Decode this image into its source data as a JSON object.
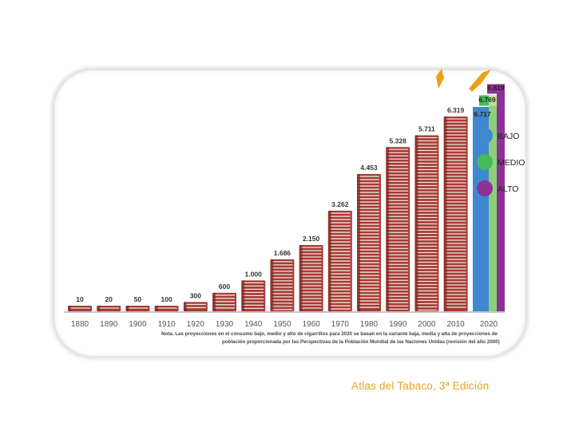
{
  "chart_data": {
    "type": "bar",
    "categories": [
      "1880",
      "1890",
      "1900",
      "1910",
      "1920",
      "1930",
      "1940",
      "1950",
      "1960",
      "1970",
      "1980",
      "1990",
      "2000",
      "2010"
    ],
    "values": [
      10,
      20,
      50,
      100,
      300,
      600,
      1000,
      1686,
      2150,
      3262,
      4453,
      5328,
      5711,
      6319
    ],
    "value_labels": [
      "10",
      "20",
      "50",
      "100",
      "300",
      "600",
      "1.000",
      "1.686",
      "2.150",
      "3.262",
      "4.453",
      "5.328",
      "5.711",
      "6.319"
    ],
    "projection": {
      "category": "2020",
      "scenarios": [
        {
          "name": "BAJO",
          "value": 6717,
          "label": "6.717",
          "color": "#3f88d0"
        },
        {
          "name": "MEDIO",
          "value": 6769,
          "label": "6.769",
          "color": "#44bb55"
        },
        {
          "name": "ALTO",
          "value": 6819,
          "label": "6.819",
          "color": "#8e3197"
        }
      ]
    },
    "bar_color": "#a53c34",
    "ylim": [
      0,
      7000
    ],
    "note_lines": [
      "Nota. Las proyecciones en el consumo bajo, medio y alto de cigarrillos para 2020 se basan en la variante baja, media y alta de proyecciones de",
      "población proporcionada por las Perspectivas de la Población Mundial de las Naciones Unidas (revisión del año 2000)"
    ]
  },
  "caption": "Atlas del Tabaco, 3ª Edición",
  "decor_color": "#e8a21a"
}
